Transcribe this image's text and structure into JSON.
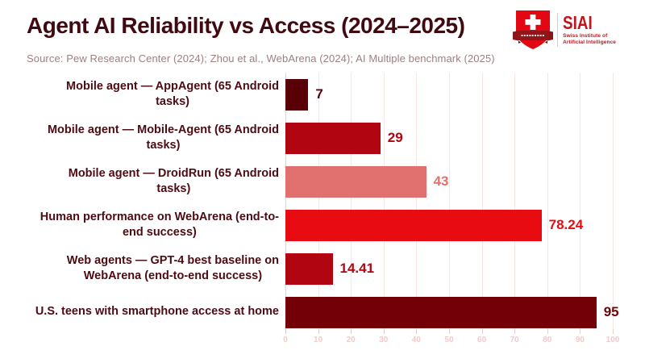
{
  "header": {
    "title": "Agent AI Reliability vs Access (2024–2025)",
    "source": "Source: Pew Research Center (2024); Zhou et al., WebArena (2024); AI Multiple benchmark (2025)",
    "title_color": "#400a10",
    "source_color": "#9d8080"
  },
  "logo": {
    "acronym": "SIAI",
    "org_line1": "Swiss Institute of",
    "org_line2": "Artificial Intelligence",
    "shield_color": "#e30613",
    "banner_color": "#8d1518",
    "text_color": "#c8121b"
  },
  "chart_data": {
    "type": "bar",
    "orientation": "horizontal",
    "title": "Agent AI Reliability vs Access (2024–2025)",
    "categories": [
      "Mobile agent — AppAgent (65 Android tasks)",
      "Mobile agent — Mobile-Agent (65 Android tasks)",
      "Mobile agent — DroidRun (65 Android tasks)",
      "Human performance on WebArena (end-to-end success)",
      "Web agents — GPT-4 best baseline on WebArena (end-to-end success)",
      "U.S. teens with smartphone access at home"
    ],
    "label_lines": [
      [
        "Mobile agent — AppAgent (65 Android",
        "tasks)"
      ],
      [
        "Mobile agent — Mobile-Agent (65 Android",
        "tasks)"
      ],
      [
        "Mobile agent — DroidRun (65 Android",
        "tasks)"
      ],
      [
        "Human performance on WebArena (end-to-",
        "end success)"
      ],
      [
        "Web agents — GPT-4 best baseline on",
        "WebArena (end-to-end success)"
      ],
      [
        "U.S. teens with smartphone access at home"
      ]
    ],
    "values": [
      7,
      29,
      43,
      78.24,
      14.41,
      95
    ],
    "value_labels": [
      "7",
      "29",
      "43",
      "78.24",
      "14.41",
      "95"
    ],
    "bar_colors": [
      "#570006",
      "#b10511",
      "#e0716f",
      "#e80c12",
      "#b10511",
      "#740007"
    ],
    "xlim": [
      0,
      100
    ],
    "x_ticks": [
      0,
      10,
      20,
      30,
      40,
      50,
      60,
      70,
      80,
      90,
      100
    ],
    "grid": true,
    "legend": false,
    "gridline_color": "#f8e6e4",
    "zero_line_color": "#d9d9d9",
    "tick_label_color": "#f3c9c9",
    "category_label_color": "#4d0b12"
  }
}
